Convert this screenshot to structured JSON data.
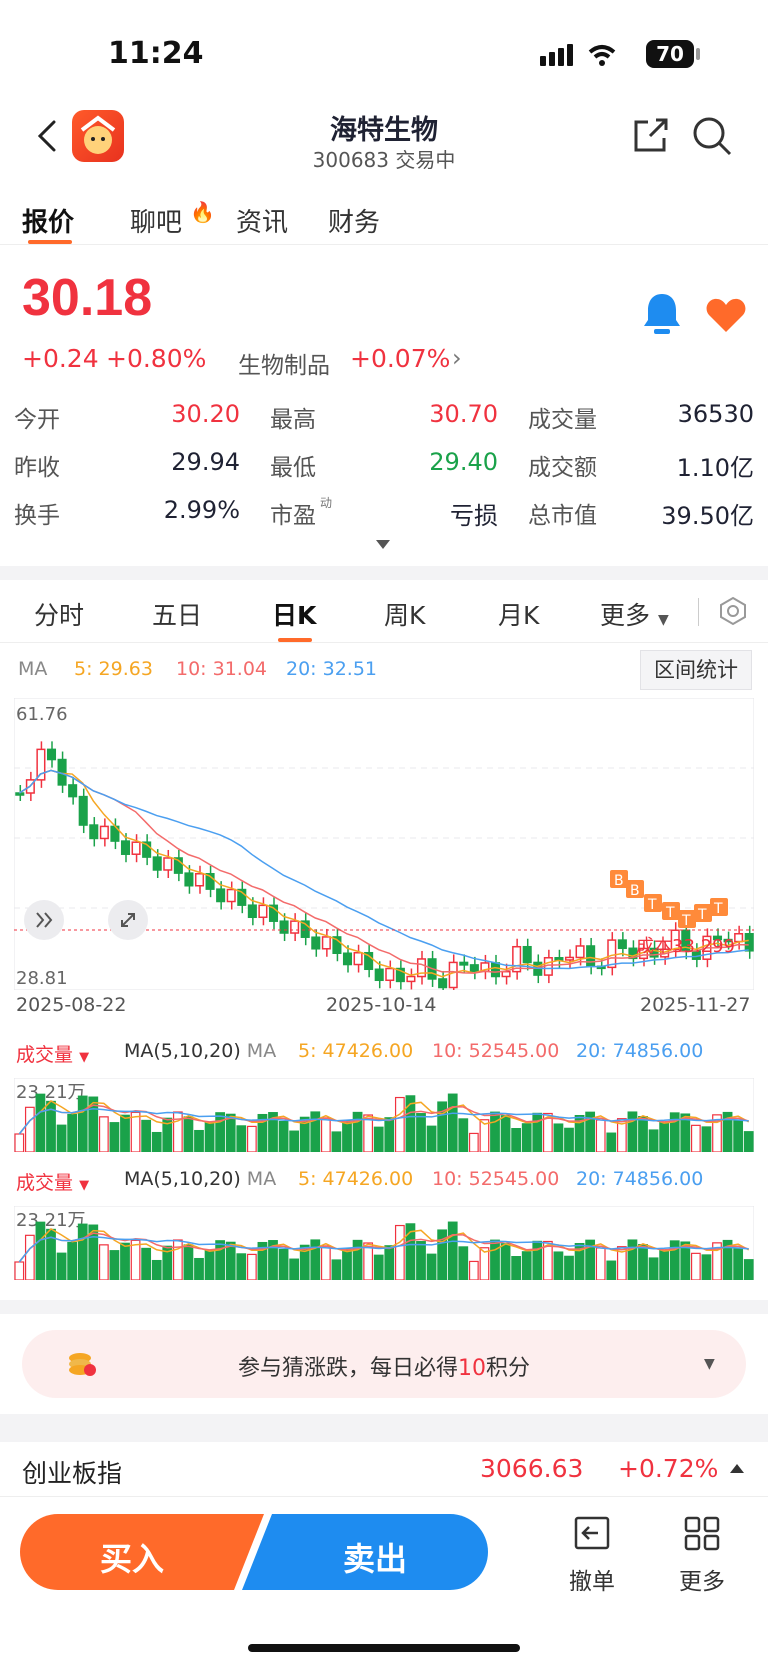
{
  "status": {
    "time": "11:24",
    "battery": "70"
  },
  "header": {
    "name": "海特生物",
    "code": "300683",
    "status": "交易中"
  },
  "tabs": [
    "报价",
    "聊吧",
    "资讯",
    "财务"
  ],
  "quote": {
    "price": "30.18",
    "change": "+0.24",
    "change_pct": "+0.80%",
    "sector": "生物制品",
    "sector_pct": "+0.07%",
    "stats": [
      {
        "label": "今开",
        "value": "30.20",
        "color": "#f0323f"
      },
      {
        "label": "最高",
        "value": "30.70",
        "color": "#f0323f"
      },
      {
        "label": "成交量",
        "value": "36530",
        "color": "#1f2233"
      },
      {
        "label": "昨收",
        "value": "29.94",
        "color": "#1f2233"
      },
      {
        "label": "最低",
        "value": "29.40",
        "color": "#1aa24a"
      },
      {
        "label": "成交额",
        "value": "1.10亿",
        "color": "#1f2233"
      },
      {
        "label": "换手",
        "value": "2.99%",
        "color": "#1f2233"
      },
      {
        "label": "市盈",
        "value": "亏损",
        "color": "#1f2233"
      },
      {
        "label": "总市值",
        "value": "39.50亿",
        "color": "#1f2233"
      }
    ],
    "pe_superscript": "动"
  },
  "kline_tabs": [
    "分时",
    "五日",
    "日K",
    "周K",
    "月K",
    "更多"
  ],
  "ma": {
    "label": "MA",
    "ma5": "5: 29.63",
    "ma10": "10: 31.04",
    "ma20": "20: 32.51"
  },
  "range_button": "区间统计",
  "kline": {
    "high_label": "61.76",
    "low_label": "28.81",
    "cost_label": "成本33.299",
    "dates": [
      "2025-08-22",
      "2025-10-14",
      "2025-11-27"
    ],
    "marker_labels": [
      "B",
      "T"
    ]
  },
  "volume": {
    "title": "成交量",
    "ma_label": "MA(5,10,20)",
    "ma_suffix": "MA",
    "ma5": "5: 47426.00",
    "ma10": "10: 52545.00",
    "ma20": "20: 74856.00",
    "max_label": "23.21万"
  },
  "guess": {
    "prefix": "参与猜涨跌，每日必得",
    "points": "10",
    "suffix": "积分"
  },
  "index": {
    "name": "创业板指",
    "value": "3066.63",
    "pct": "+0.72%"
  },
  "bottom": {
    "buy": "买入",
    "sell": "卖出",
    "cancel": "撤单",
    "more": "更多"
  },
  "colors": {
    "up": "#f0323f",
    "down": "#1aa24a",
    "accent": "#ff6a2a",
    "sell": "#1e8cf0",
    "ma5": "#f5a623",
    "ma10": "#f36b6b",
    "ma20": "#4b9ff0"
  }
}
